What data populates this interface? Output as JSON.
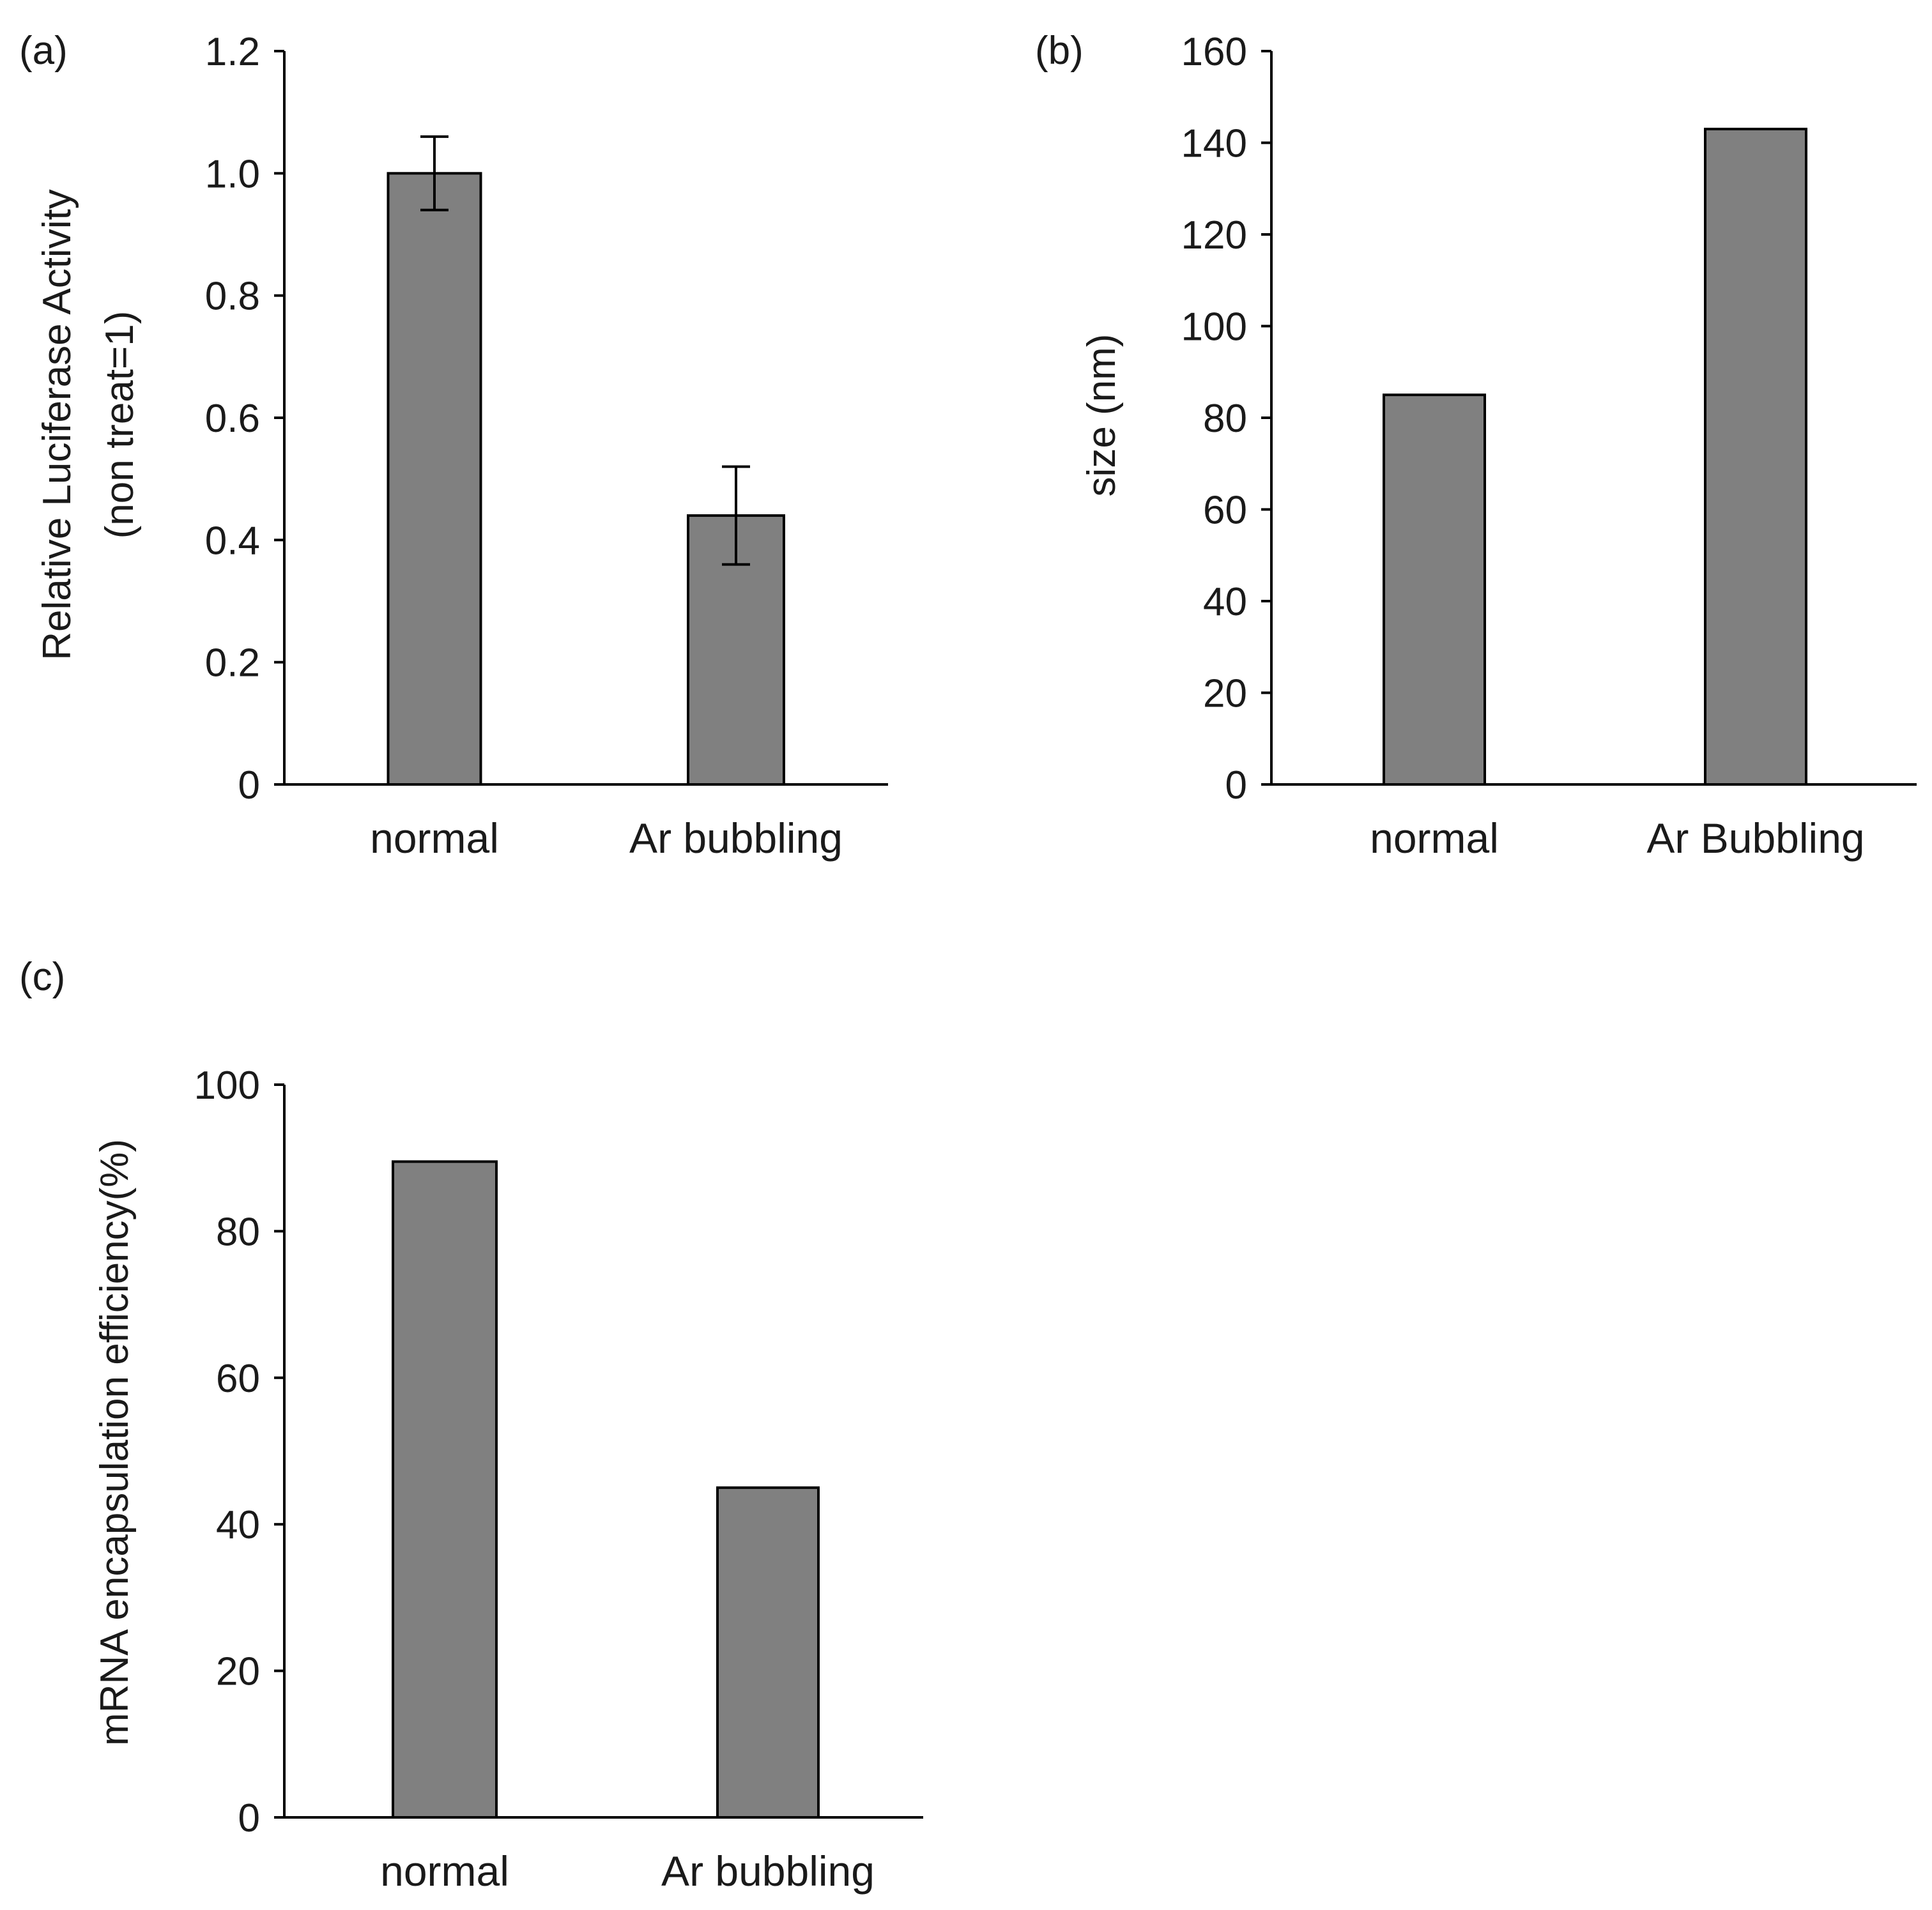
{
  "bar_color": "#808080",
  "chart_data": [
    {
      "panel": "(a)",
      "type": "bar",
      "categories": [
        "normal",
        "Ar bubbling"
      ],
      "values": [
        1.0,
        0.44
      ],
      "errors": [
        0.06,
        0.08
      ],
      "ylim": [
        0,
        1.2
      ],
      "yticks": [
        "0",
        "0.2",
        "0.4",
        "0.6",
        "0.8",
        "1.0",
        "1.2"
      ],
      "ytick_values": [
        0,
        0.2,
        0.4,
        0.6,
        0.8,
        1.0,
        1.2
      ],
      "ylabel": "Relative Luciferase Activity",
      "ylabel2": "(non treat=1)",
      "xlabel": "",
      "title": ""
    },
    {
      "panel": "(b)",
      "type": "bar",
      "categories": [
        "normal",
        "Ar Bubbling"
      ],
      "values": [
        85,
        143
      ],
      "ylim": [
        0,
        160
      ],
      "yticks": [
        "0",
        "20",
        "40",
        "60",
        "80",
        "100",
        "120",
        "140",
        "160"
      ],
      "ytick_values": [
        0,
        20,
        40,
        60,
        80,
        100,
        120,
        140,
        160
      ],
      "ylabel": "size (nm)",
      "xlabel": "",
      "title": ""
    },
    {
      "panel": "(c)",
      "type": "bar",
      "categories": [
        "normal",
        "Ar bubbling"
      ],
      "values": [
        89.5,
        45
      ],
      "ylim": [
        0,
        100
      ],
      "yticks": [
        "0",
        "20",
        "40",
        "60",
        "80",
        "100"
      ],
      "ytick_values": [
        0,
        20,
        40,
        60,
        80,
        100
      ],
      "ylabel": "mRNA encapsulation efficiency(%)",
      "xlabel": "",
      "title": ""
    }
  ]
}
